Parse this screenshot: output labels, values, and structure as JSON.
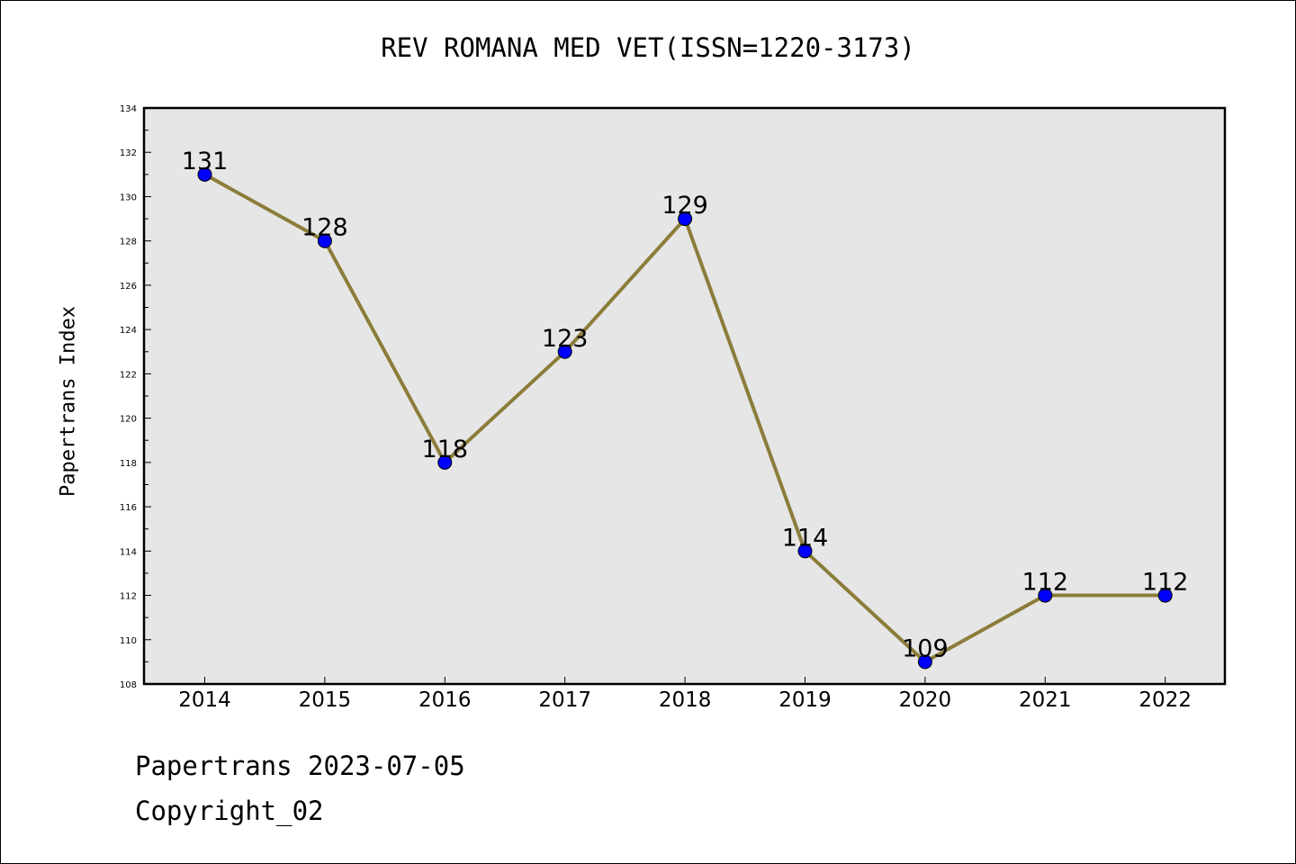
{
  "chart_data": {
    "type": "line",
    "title": "REV ROMANA MED VET(ISSN=1220-3173)",
    "xlabel": "",
    "ylabel": "Papertrans Index",
    "categories": [
      "2014",
      "2015",
      "2016",
      "2017",
      "2018",
      "2019",
      "2020",
      "2021",
      "2022"
    ],
    "series": [
      {
        "values": [
          131,
          128,
          118,
          123,
          129,
          114,
          109,
          112,
          112
        ]
      }
    ],
    "data_labels": [
      "131",
      "128",
      "118",
      "123",
      "129",
      "114",
      "109",
      "112",
      "112"
    ],
    "ylim": [
      108,
      134
    ],
    "y_ticks": [
      "108",
      "110",
      "112",
      "114",
      "116",
      "118",
      "120",
      "122",
      "124",
      "126",
      "128",
      "130",
      "132",
      "134"
    ],
    "grid": false,
    "legend": "none",
    "colors": {
      "line": "#8b7d3a",
      "marker": "#0000ff",
      "plot_background": "#e6e6e6"
    }
  },
  "footer": {
    "line1": "Papertrans 2023-07-05",
    "line2": "Copyright_02"
  }
}
